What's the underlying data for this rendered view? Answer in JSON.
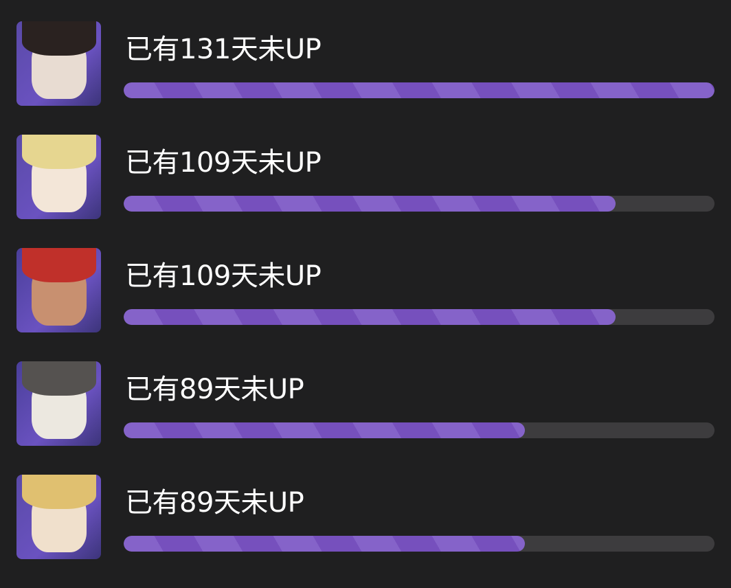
{
  "max_days": 131,
  "colors": {
    "background": "#1f1f20",
    "bar_fill": "#7a55c0",
    "bar_track": "#3d3c3e",
    "text": "#ffffff"
  },
  "rows": [
    {
      "label": "已有131天未UP",
      "days": 131,
      "progress": 1.0,
      "avatar": {
        "hair": "#2a2220",
        "face": "#e8dcd2",
        "bg": "#5a4aa8"
      }
    },
    {
      "label": "已有109天未UP",
      "days": 109,
      "progress": 0.832,
      "avatar": {
        "hair": "#e6d690",
        "face": "#f3e6d8",
        "bg": "#5a4aa8"
      }
    },
    {
      "label": "已有109天未UP",
      "days": 109,
      "progress": 0.832,
      "avatar": {
        "hair": "#c0302a",
        "face": "#c89070",
        "bg": "#4a3f9a"
      }
    },
    {
      "label": "已有89天未UP",
      "days": 89,
      "progress": 0.679,
      "avatar": {
        "hair": "#555250",
        "face": "#ece8e0",
        "bg": "#4a3f9a"
      }
    },
    {
      "label": "已有89天未UP",
      "days": 89,
      "progress": 0.679,
      "avatar": {
        "hair": "#e0c070",
        "face": "#f0e0cc",
        "bg": "#5a4aa8"
      }
    }
  ]
}
